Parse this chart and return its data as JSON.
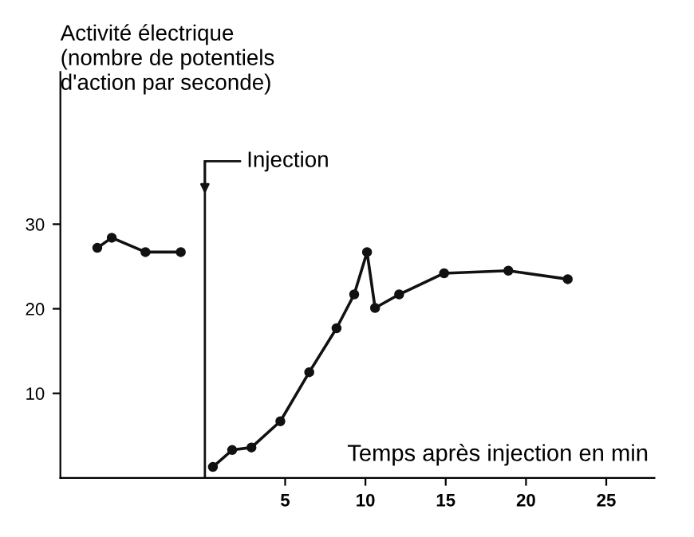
{
  "chart_data": {
    "type": "line",
    "ylabel": "Activité électrique\n(nombre de potentiels\nd'action par seconde)",
    "xlabel": "Temps après injection en min",
    "series": [
      {
        "color": "#111111",
        "x": [
          -6.7,
          -5.8,
          -3.7,
          -1.5
        ],
        "values": [
          27.2,
          28.4,
          26.7,
          26.7
        ]
      },
      {
        "color": "#111111",
        "x": [
          0.5,
          1.7,
          2.9,
          4.7,
          6.5,
          8.2,
          9.3,
          10.1,
          10.6,
          12.1,
          14.9,
          18.9,
          22.6
        ],
        "values": [
          1.3,
          3.3,
          3.6,
          6.7,
          12.5,
          17.7,
          21.7,
          26.7,
          20.1,
          21.7,
          24.2,
          24.5,
          23.5
        ]
      }
    ],
    "ref_lines": [
      {
        "axis": "x",
        "value": 0,
        "label": "Injection",
        "color": "#111111"
      }
    ],
    "xlim": [
      -9,
      28
    ],
    "ylim": [
      0,
      48
    ],
    "xticks": [
      5,
      10,
      15,
      20,
      25
    ],
    "yticks": [
      10,
      20,
      30
    ],
    "marker": "circle",
    "line_style": "solid",
    "grid": false
  }
}
